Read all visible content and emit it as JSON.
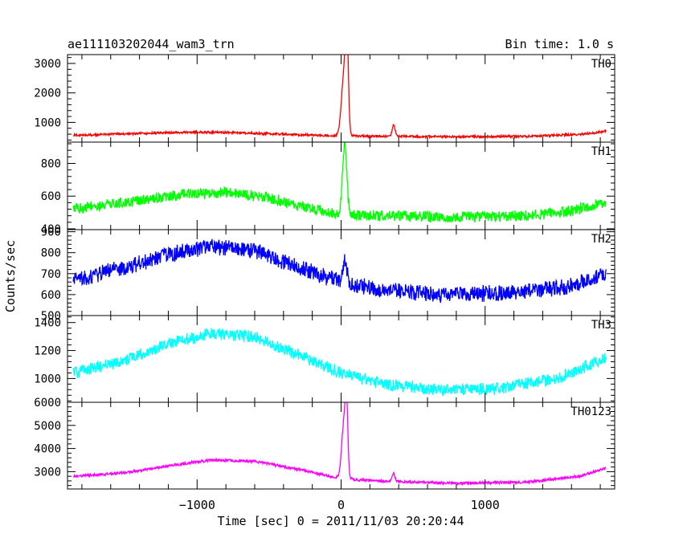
{
  "header": {
    "title": "ae111103202044_wam3_trn",
    "bin_time": "Bin time: 1.0 s"
  },
  "ylabel": "Counts/sec",
  "xlabel": "Time [sec] 0 = 2011/11/03 20:20:44",
  "chart_data": [
    {
      "type": "line",
      "name": "TH0",
      "color": "#ff0000",
      "xlim": [
        -1900,
        1900
      ],
      "ylim": [
        330,
        3300
      ],
      "yticks": [
        1000,
        2000,
        3000
      ],
      "xticks": [
        -1000,
        0,
        1000
      ],
      "baseline": [
        [
          -1860,
          560
        ],
        [
          -1500,
          610
        ],
        [
          -1000,
          670
        ],
        [
          -700,
          650
        ],
        [
          -300,
          580
        ],
        [
          0,
          540
        ],
        [
          300,
          530
        ],
        [
          800,
          510
        ],
        [
          1300,
          530
        ],
        [
          1650,
          590
        ],
        [
          1840,
          700
        ]
      ],
      "noise": 40,
      "peaks": [
        [
          20,
          2000,
          18
        ],
        [
          40,
          3100,
          10
        ],
        [
          365,
          400,
          10
        ]
      ]
    },
    {
      "type": "line",
      "name": "TH1",
      "color": "#00ff00",
      "xlim": [
        -1900,
        1900
      ],
      "ylim": [
        395,
        930
      ],
      "yticks": [
        400,
        600,
        800
      ],
      "xticks": [
        -1000,
        0,
        1000
      ],
      "baseline": [
        [
          -1860,
          520
        ],
        [
          -1500,
          560
        ],
        [
          -1100,
          610
        ],
        [
          -800,
          625
        ],
        [
          -500,
          590
        ],
        [
          -200,
          520
        ],
        [
          0,
          490
        ],
        [
          300,
          480
        ],
        [
          800,
          470
        ],
        [
          1300,
          480
        ],
        [
          1600,
          510
        ],
        [
          1840,
          560
        ]
      ],
      "noise": 35,
      "peaks": [
        [
          25,
          430,
          15
        ]
      ]
    },
    {
      "type": "line",
      "name": "TH2",
      "color": "#0000ff",
      "xlim": [
        -1900,
        1900
      ],
      "ylim": [
        500,
        910
      ],
      "yticks": [
        500,
        600,
        700,
        800,
        900
      ],
      "xticks": [
        -1000,
        0,
        1000
      ],
      "baseline": [
        [
          -1860,
          670
        ],
        [
          -1500,
          730
        ],
        [
          -1200,
          790
        ],
        [
          -900,
          830
        ],
        [
          -600,
          810
        ],
        [
          -300,
          730
        ],
        [
          0,
          660
        ],
        [
          300,
          620
        ],
        [
          700,
          600
        ],
        [
          1200,
          610
        ],
        [
          1600,
          640
        ],
        [
          1840,
          700
        ]
      ],
      "noise": 40,
      "peaks": [
        [
          25,
          100,
          15
        ]
      ]
    },
    {
      "type": "line",
      "name": "TH3",
      "color": "#00ffff",
      "xlim": [
        -1900,
        1900
      ],
      "ylim": [
        830,
        1450
      ],
      "yticks": [
        1000,
        1200,
        1400
      ],
      "xticks": [
        -1000,
        0,
        1000
      ],
      "baseline": [
        [
          -1860,
          1040
        ],
        [
          -1500,
          1130
        ],
        [
          -1200,
          1250
        ],
        [
          -900,
          1320
        ],
        [
          -600,
          1300
        ],
        [
          -300,
          1170
        ],
        [
          0,
          1040
        ],
        [
          300,
          960
        ],
        [
          700,
          920
        ],
        [
          1100,
          930
        ],
        [
          1500,
          1000
        ],
        [
          1840,
          1150
        ]
      ],
      "noise": 45,
      "peaks": []
    },
    {
      "type": "line",
      "name": "TH0123",
      "color": "#ff00ff",
      "xlim": [
        -1900,
        1900
      ],
      "ylim": [
        2250,
        6000
      ],
      "yticks": [
        3000,
        4000,
        5000,
        6000
      ],
      "xticks": [
        -1000,
        0,
        1000
      ],
      "baseline": [
        [
          -1860,
          2800
        ],
        [
          -1500,
          2950
        ],
        [
          -1200,
          3250
        ],
        [
          -900,
          3500
        ],
        [
          -600,
          3450
        ],
        [
          -300,
          3100
        ],
        [
          0,
          2700
        ],
        [
          300,
          2580
        ],
        [
          800,
          2500
        ],
        [
          1300,
          2550
        ],
        [
          1650,
          2800
        ],
        [
          1840,
          3150
        ]
      ],
      "noise": 60,
      "peaks": [
        [
          20,
          2400,
          16
        ],
        [
          38,
          2600,
          9
        ],
        [
          365,
          350,
          10
        ]
      ]
    }
  ]
}
